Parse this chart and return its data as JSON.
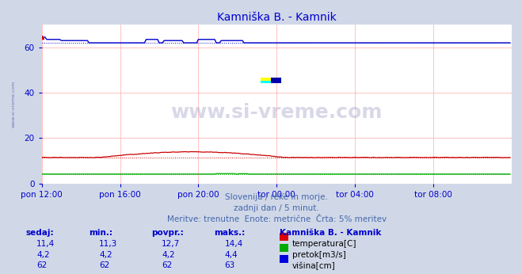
{
  "title": "Kamniška B. - Kamnik",
  "title_color": "#0000cc",
  "bg_color": "#d0d8e8",
  "plot_bg_color": "#ffffff",
  "grid_color": "#ffaaaa",
  "xlabel_ticks": [
    "pon 12:00",
    "pon 16:00",
    "pon 20:00",
    "tor 00:00",
    "tor 04:00",
    "tor 08:00"
  ],
  "ylabel_ticks": [
    0,
    20,
    40,
    60
  ],
  "ylim": [
    0,
    70
  ],
  "xlim": [
    0,
    288
  ],
  "watermark_text": "www.si-vreme.com",
  "subtitle1": "Slovenija / reke in morje.",
  "subtitle2": "zadnji dan / 5 minut.",
  "subtitle3": "Meritve: trenutne  Enote: metrične  Črta: 5% meritev",
  "subtitle_color": "#4466aa",
  "legend_title": "Kamniška B. - Kamnik",
  "legend_items": [
    {
      "label": "temperatura[C]",
      "color": "#dd0000"
    },
    {
      "label": "pretok[m3/s]",
      "color": "#00aa00"
    },
    {
      "label": "višina[cm]",
      "color": "#0000dd"
    }
  ],
  "table_headers": [
    "sedaj:",
    "min.:",
    "povpr.:",
    "maks.:"
  ],
  "table_data": [
    [
      "11,4",
      "11,3",
      "12,7",
      "14,4"
    ],
    [
      "4,2",
      "4,2",
      "4,2",
      "4,4"
    ],
    [
      "62",
      "62",
      "62",
      "63"
    ]
  ],
  "n_points": 288,
  "temp_5pct": 11.5,
  "pretok_5pct": 4.2,
  "visina_5pct": 62.0,
  "tick_color": "#0000cc",
  "watermark_color": "#aaaacc",
  "watermark_alpha": 0.45,
  "sidebar_text": "www.si-vreme.com"
}
